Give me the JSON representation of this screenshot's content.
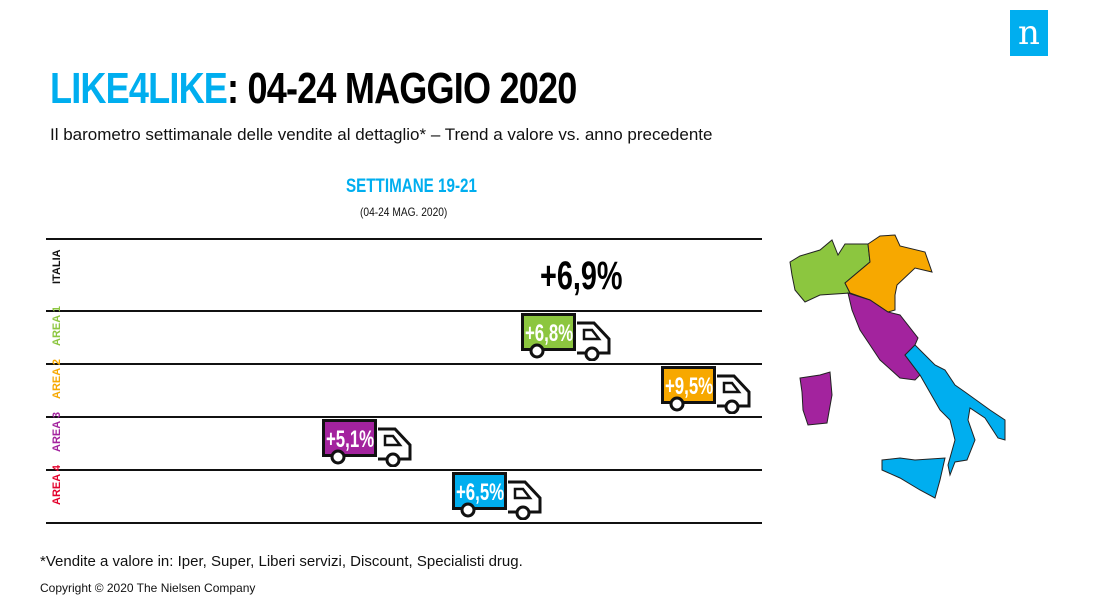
{
  "header": {
    "title_highlight": "LIKE4LIKE",
    "title_rest": ": 04-24 MAGGIO 2020",
    "subtitle": "Il barometro settimanale delle vendite al dettaglio* – Trend a valore vs. anno precedente",
    "logo": "n"
  },
  "chart_data": {
    "type": "bar",
    "title": "SETTIMANE 19-21",
    "subtitle": "(04-24 MAG. 2020)",
    "categories": [
      "ITALIA",
      "AREA 1",
      "AREA 2",
      "AREA 3",
      "AREA 4"
    ],
    "values": [
      6.9,
      6.8,
      9.5,
      5.1,
      6.5
    ],
    "labels": [
      "+6,9%",
      "+6,8%",
      "+9,5%",
      "+5,1%",
      "+6,5%"
    ],
    "colors": [
      "#111111",
      "#8cc63f",
      "#f7a800",
      "#a3239e",
      "#00aeef"
    ],
    "label_colors": [
      "#111111",
      "#8cc63f",
      "#f7a800",
      "#a3239e",
      "#e4002b"
    ]
  },
  "footer": {
    "note": "*Vendite a valore in: Iper, Super, Liberi servizi, Discount, Specialisti drug.",
    "copyright": "Copyright © 2020 The Nielsen Company"
  }
}
